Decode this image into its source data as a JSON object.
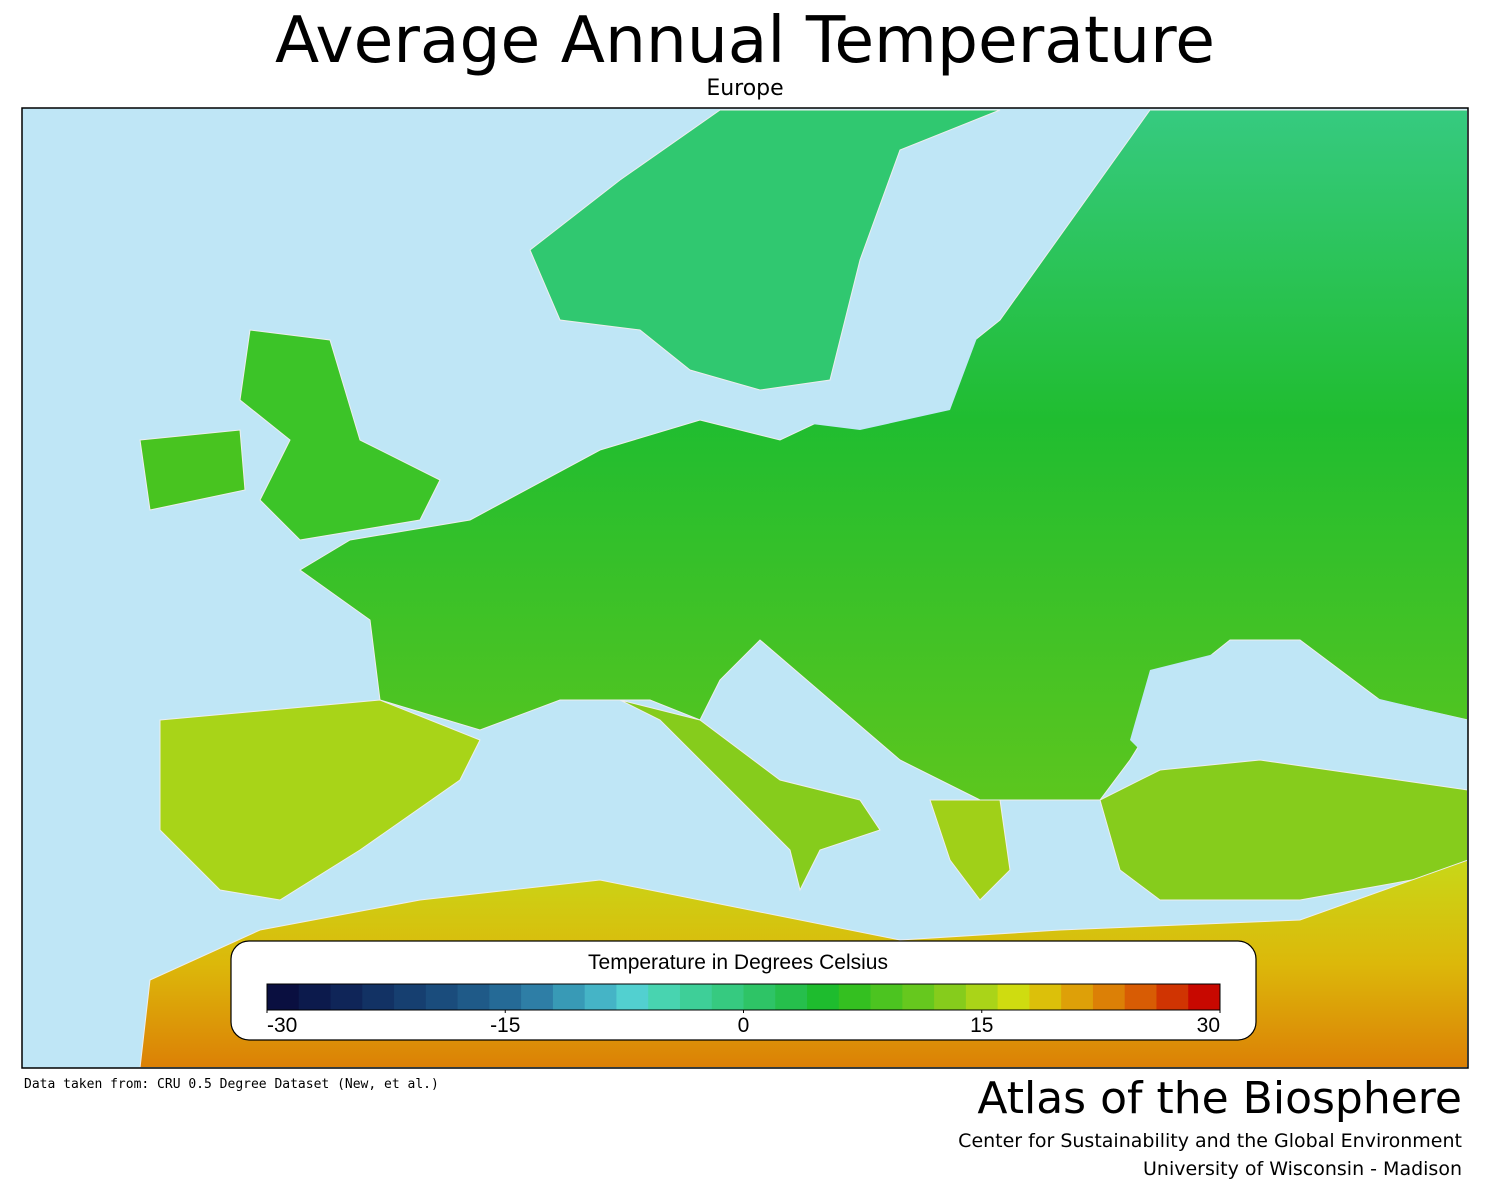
{
  "header": {
    "title": "Average Annual Temperature",
    "subtitle": "Europe"
  },
  "legend": {
    "title": "Temperature in Degrees Celsius",
    "min": -30,
    "max": 30,
    "ticks": [
      -30,
      -15,
      0,
      15,
      30
    ],
    "colors": [
      "#0a0f40",
      "#0c1a4c",
      "#0f2558",
      "#123264",
      "#163f70",
      "#1a4c7c",
      "#1f5a88",
      "#256a96",
      "#2e7ea6",
      "#389ab6",
      "#45b4c6",
      "#52d0d0",
      "#48d4b0",
      "#3ecf98",
      "#36ca80",
      "#2ec466",
      "#26bf4c",
      "#1ebc2e",
      "#34c020",
      "#4cc420",
      "#66c81e",
      "#86cc1c",
      "#aad418",
      "#cfdc10",
      "#dcc00a",
      "#dea008",
      "#dc8006",
      "#d85c04",
      "#d03402",
      "#c80800"
    ]
  },
  "footer": {
    "source": "Data taken from: CRU 0.5 Degree Dataset (New, et al.)",
    "brand": "Atlas of the Biosphere",
    "org1": "Center for Sustainability and the Global Environment",
    "org2": "University of Wisconsin - Madison"
  }
}
